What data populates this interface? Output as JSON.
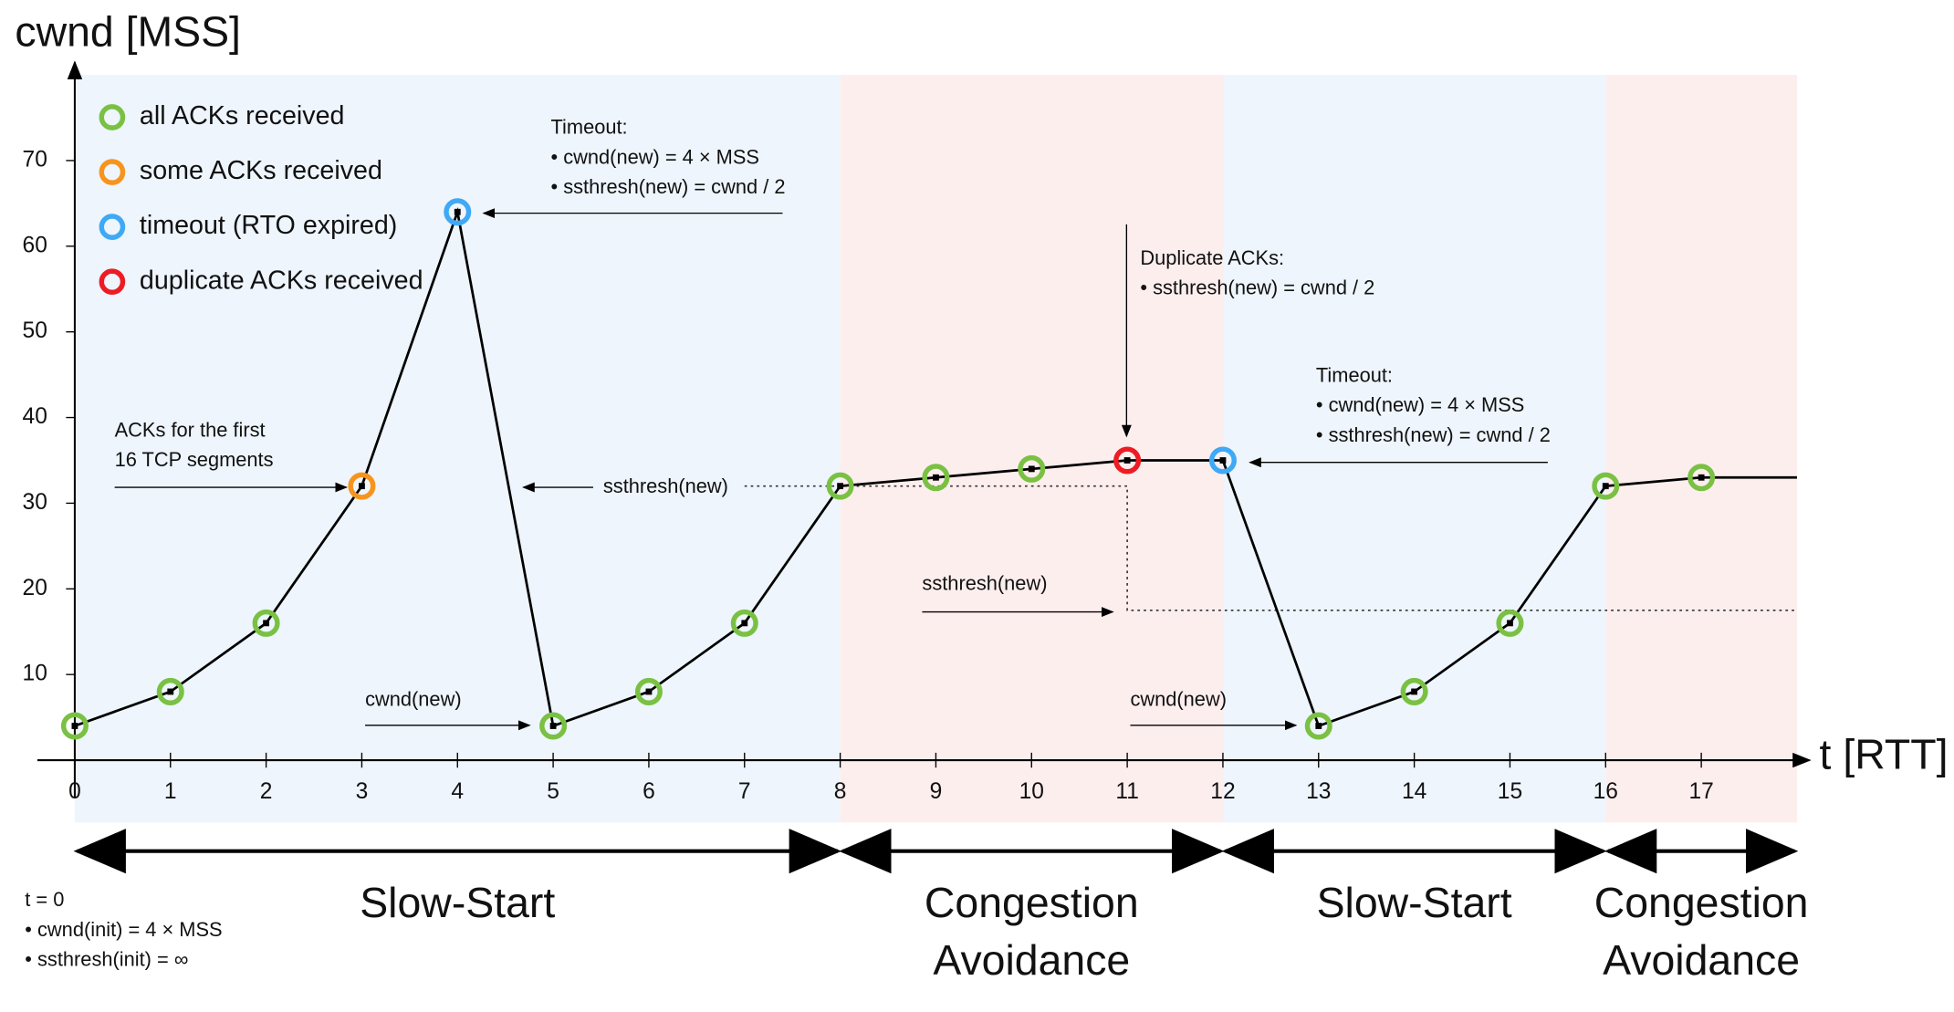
{
  "chart_data": {
    "type": "line",
    "y_label": "cwnd [MSS]",
    "x_label": "t [RTT]",
    "x": [
      0,
      1,
      2,
      3,
      4,
      5,
      6,
      7,
      8,
      9,
      10,
      11,
      12,
      13,
      14,
      15,
      16,
      17,
      18
    ],
    "series": [
      {
        "color": "#000000",
        "values": [
          4,
          8,
          16,
          32,
          64,
          4,
          8,
          16,
          32,
          33,
          34,
          35,
          35,
          4,
          8,
          16,
          32,
          33,
          33
        ],
        "point_colors": [
          "#7ac143",
          "#7ac143",
          "#7ac143",
          "#f7941d",
          "#3fa9f5",
          "#7ac143",
          "#7ac143",
          "#7ac143",
          "#7ac143",
          "#7ac143",
          "#7ac143",
          "#ed1c24",
          "#3fa9f5",
          "#7ac143",
          "#7ac143",
          "#7ac143",
          "#7ac143",
          "#7ac143",
          null
        ]
      }
    ],
    "xlim": [
      0,
      18
    ],
    "ylim": [
      0,
      80
    ],
    "xticks": [
      0,
      1,
      2,
      3,
      4,
      5,
      6,
      7,
      8,
      9,
      10,
      11,
      12,
      13,
      14,
      15,
      16,
      17
    ],
    "yticks": [
      10,
      20,
      30,
      40,
      50,
      60,
      70
    ],
    "grid": false,
    "legend": [
      {
        "name": "all ACKs received",
        "color": "#7ac143"
      },
      {
        "name": "some ACKs received",
        "color": "#f7941d"
      },
      {
        "name": "timeout (RTO expired)",
        "color": "#3fa9f5"
      },
      {
        "name": "duplicate ACKs received",
        "color": "#ed1c24"
      }
    ],
    "ssthresh": {
      "x": [
        7,
        11,
        11,
        18
      ],
      "values": [
        32,
        32,
        17.5,
        17.5
      ]
    },
    "phases": [
      {
        "lines": [
          "Slow-Start"
        ],
        "start": 0,
        "end": 8,
        "color": "#eef5fc"
      },
      {
        "lines": [
          "Congestion",
          "Avoidance"
        ],
        "start": 8,
        "end": 12,
        "color": "#fdeeee"
      },
      {
        "lines": [
          "Slow-Start"
        ],
        "start": 12,
        "end": 16,
        "color": "#eef5fc"
      },
      {
        "lines": [
          "Congestion",
          "Avoidance"
        ],
        "start": 16,
        "end": 18,
        "color": "#fdeeee"
      }
    ],
    "annotations": [
      {
        "lines": [
          "Timeout:",
          "• cwnd(new) = 4 × MSS",
          "• ssthresh(new) = cwnd / 2"
        ]
      },
      {
        "lines": [
          "ACKs for the first",
          "16 TCP segments"
        ]
      },
      {
        "lines": [
          "ssthresh(new)"
        ]
      },
      {
        "lines": [
          "Duplicate ACKs:",
          "• ssthresh(new) = cwnd / 2"
        ]
      },
      {
        "lines": [
          "Timeout:",
          "• cwnd(new) = 4 × MSS",
          "• ssthresh(new) = cwnd / 2"
        ]
      },
      {
        "lines": [
          "ssthresh(new)"
        ]
      },
      {
        "lines": [
          "cwnd(new)"
        ]
      },
      {
        "lines": [
          "cwnd(new)"
        ]
      }
    ],
    "footnote": [
      "t = 0",
      "• cwnd(init) = 4 × MSS",
      "• ssthresh(init) = ∞"
    ]
  }
}
